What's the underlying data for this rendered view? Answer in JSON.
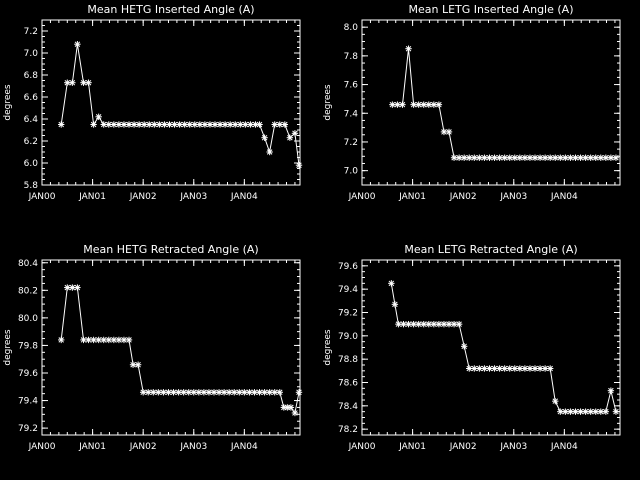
{
  "colors": {
    "background": "#000000",
    "foreground": "#ffffff"
  },
  "chart_data": [
    {
      "type": "line",
      "title": "Mean HETG Inserted Angle (A)",
      "ylabel": "degrees",
      "xlabel": "",
      "x_ticks": [
        "JAN00",
        "JAN01",
        "JAN02",
        "JAN03",
        "JAN04"
      ],
      "xlim": [
        0,
        5.1
      ],
      "ylim": [
        5.8,
        7.3
      ],
      "y_ticks": [
        "5.8",
        "6.0",
        "6.2",
        "6.4",
        "6.6",
        "6.8",
        "7.0",
        "7.2"
      ],
      "marker": "asterisk",
      "x": [
        0.38,
        0.5,
        0.6,
        0.7,
        0.82,
        0.92,
        1.02,
        1.12,
        1.22,
        1.32,
        1.42,
        1.52,
        1.62,
        1.72,
        1.82,
        1.92,
        2.02,
        2.12,
        2.22,
        2.32,
        2.42,
        2.52,
        2.62,
        2.72,
        2.82,
        2.92,
        3.02,
        3.12,
        3.22,
        3.32,
        3.42,
        3.52,
        3.62,
        3.72,
        3.82,
        3.92,
        4.02,
        4.12,
        4.22,
        4.3,
        4.4,
        4.5,
        4.6,
        4.7,
        4.8,
        4.9,
        5.0,
        5.08
      ],
      "y": [
        6.35,
        6.73,
        6.73,
        7.08,
        6.73,
        6.73,
        6.35,
        6.42,
        6.35,
        6.35,
        6.35,
        6.35,
        6.35,
        6.35,
        6.35,
        6.35,
        6.35,
        6.35,
        6.35,
        6.35,
        6.35,
        6.35,
        6.35,
        6.35,
        6.35,
        6.35,
        6.35,
        6.35,
        6.35,
        6.35,
        6.35,
        6.35,
        6.35,
        6.35,
        6.35,
        6.35,
        6.35,
        6.35,
        6.35,
        6.35,
        6.23,
        6.1,
        6.35,
        6.35,
        6.35,
        6.23,
        6.27,
        5.98
      ]
    },
    {
      "type": "line",
      "title": "Mean LETG Inserted Angle (A)",
      "ylabel": "degrees",
      "xlabel": "",
      "x_ticks": [
        "JAN00",
        "JAN01",
        "JAN02",
        "JAN03",
        "JAN04"
      ],
      "xlim": [
        0,
        5.1
      ],
      "ylim": [
        6.9,
        8.05
      ],
      "y_ticks": [
        "7.0",
        "7.2",
        "7.4",
        "7.6",
        "7.8",
        "8.0"
      ],
      "marker": "asterisk",
      "x": [
        0.6,
        0.7,
        0.8,
        0.92,
        1.02,
        1.12,
        1.22,
        1.32,
        1.42,
        1.52,
        1.62,
        1.72,
        1.82,
        1.92,
        2.02,
        2.12,
        2.22,
        2.32,
        2.42,
        2.52,
        2.62,
        2.72,
        2.82,
        2.92,
        3.02,
        3.12,
        3.22,
        3.32,
        3.42,
        3.52,
        3.62,
        3.72,
        3.82,
        3.92,
        4.02,
        4.12,
        4.22,
        4.32,
        4.42,
        4.52,
        4.62,
        4.72,
        4.82,
        4.92,
        5.02
      ],
      "y": [
        7.46,
        7.46,
        7.46,
        7.85,
        7.46,
        7.46,
        7.46,
        7.46,
        7.46,
        7.46,
        7.27,
        7.27,
        7.09,
        7.09,
        7.09,
        7.09,
        7.09,
        7.09,
        7.09,
        7.09,
        7.09,
        7.09,
        7.09,
        7.09,
        7.09,
        7.09,
        7.09,
        7.09,
        7.09,
        7.09,
        7.09,
        7.09,
        7.09,
        7.09,
        7.09,
        7.09,
        7.09,
        7.09,
        7.09,
        7.09,
        7.09,
        7.09,
        7.09,
        7.09,
        7.09
      ]
    },
    {
      "type": "line",
      "title": "Mean HETG Retracted Angle (A)",
      "ylabel": "degrees",
      "xlabel": "",
      "x_ticks": [
        "JAN00",
        "JAN01",
        "JAN02",
        "JAN03",
        "JAN04"
      ],
      "xlim": [
        0,
        5.1
      ],
      "ylim": [
        79.15,
        80.42
      ],
      "y_ticks": [
        "79.2",
        "79.4",
        "79.6",
        "79.8",
        "80.0",
        "80.2",
        "80.4"
      ],
      "marker": "asterisk",
      "x": [
        0.38,
        0.5,
        0.6,
        0.7,
        0.82,
        0.92,
        1.02,
        1.12,
        1.22,
        1.32,
        1.42,
        1.52,
        1.62,
        1.72,
        1.8,
        1.9,
        2.0,
        2.1,
        2.2,
        2.3,
        2.4,
        2.5,
        2.6,
        2.7,
        2.8,
        2.9,
        3.0,
        3.1,
        3.2,
        3.3,
        3.4,
        3.5,
        3.6,
        3.7,
        3.8,
        3.9,
        4.0,
        4.1,
        4.2,
        4.3,
        4.4,
        4.5,
        4.6,
        4.7,
        4.78,
        4.85,
        4.92,
        5.0,
        5.08
      ],
      "y": [
        79.84,
        80.22,
        80.22,
        80.22,
        79.84,
        79.84,
        79.84,
        79.84,
        79.84,
        79.84,
        79.84,
        79.84,
        79.84,
        79.84,
        79.66,
        79.66,
        79.46,
        79.46,
        79.46,
        79.46,
        79.46,
        79.46,
        79.46,
        79.46,
        79.46,
        79.46,
        79.46,
        79.46,
        79.46,
        79.46,
        79.46,
        79.46,
        79.46,
        79.46,
        79.46,
        79.46,
        79.46,
        79.46,
        79.46,
        79.46,
        79.46,
        79.46,
        79.46,
        79.46,
        79.35,
        79.35,
        79.35,
        79.31,
        79.46
      ]
    },
    {
      "type": "line",
      "title": "Mean LETG Retracted Angle (A)",
      "ylabel": "degrees",
      "xlabel": "",
      "x_ticks": [
        "JAN00",
        "JAN01",
        "JAN02",
        "JAN03",
        "JAN04"
      ],
      "xlim": [
        0,
        5.1
      ],
      "ylim": [
        78.15,
        79.65
      ],
      "y_ticks": [
        "78.2",
        "78.4",
        "78.6",
        "78.8",
        "79.0",
        "79.2",
        "79.4",
        "79.6"
      ],
      "marker": "asterisk",
      "x": [
        0.58,
        0.65,
        0.72,
        0.82,
        0.92,
        1.02,
        1.12,
        1.22,
        1.32,
        1.42,
        1.52,
        1.62,
        1.72,
        1.82,
        1.92,
        2.02,
        2.12,
        2.22,
        2.32,
        2.42,
        2.52,
        2.62,
        2.72,
        2.82,
        2.92,
        3.02,
        3.12,
        3.22,
        3.32,
        3.42,
        3.52,
        3.62,
        3.72,
        3.82,
        3.92,
        4.02,
        4.12,
        4.22,
        4.32,
        4.42,
        4.52,
        4.62,
        4.72,
        4.82,
        4.92,
        5.02
      ],
      "y": [
        79.45,
        79.27,
        79.1,
        79.1,
        79.1,
        79.1,
        79.1,
        79.1,
        79.1,
        79.1,
        79.1,
        79.1,
        79.1,
        79.1,
        79.1,
        78.91,
        78.72,
        78.72,
        78.72,
        78.72,
        78.72,
        78.72,
        78.72,
        78.72,
        78.72,
        78.72,
        78.72,
        78.72,
        78.72,
        78.72,
        78.72,
        78.72,
        78.72,
        78.44,
        78.35,
        78.35,
        78.35,
        78.35,
        78.35,
        78.35,
        78.35,
        78.35,
        78.35,
        78.35,
        78.53,
        78.35
      ]
    }
  ]
}
